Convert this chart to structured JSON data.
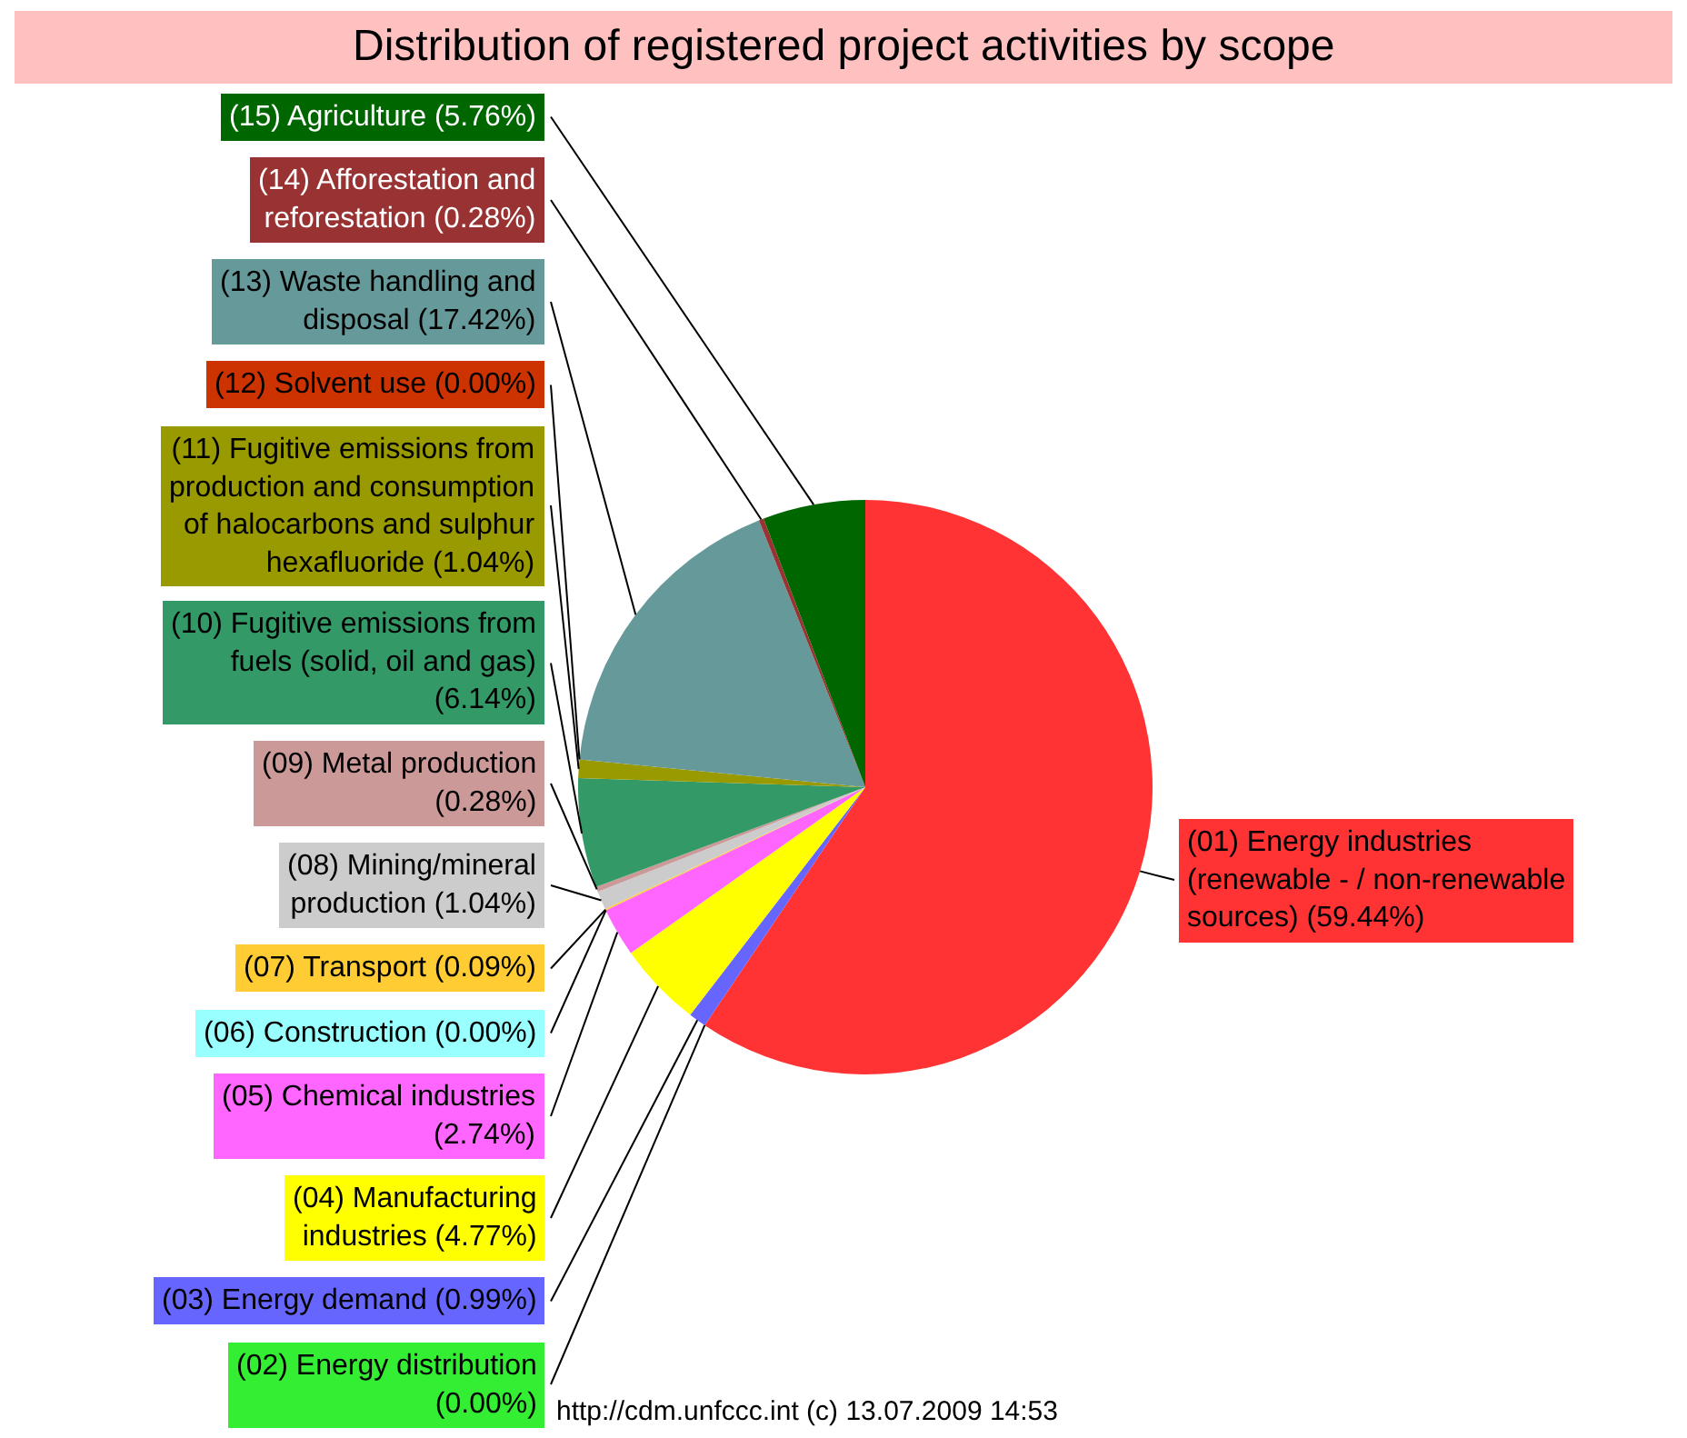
{
  "chart_data": {
    "type": "pie",
    "title": "Distribution of registered project activities by scope",
    "categories": [
      "(01) Energy industries (renewable - / non-renewable sources)",
      "(02) Energy distribution",
      "(03) Energy demand",
      "(04) Manufacturing industries",
      "(05) Chemical industries",
      "(06) Construction",
      "(07) Transport",
      "(08) Mining/mineral production",
      "(09) Metal production",
      "(10) Fugitive emissions from fuels (solid, oil and gas)",
      "(11) Fugitive emissions from production and consumption of halocarbons and sulphur hexafluoride",
      "(12) Solvent use",
      "(13) Waste handling and disposal",
      "(14) Afforestation and reforestation",
      "(15) Agriculture"
    ],
    "values": [
      59.44,
      0.0,
      0.99,
      4.77,
      2.74,
      0.0,
      0.09,
      1.04,
      0.28,
      6.14,
      1.04,
      0.0,
      17.42,
      0.28,
      5.76
    ],
    "value_labels": [
      "(59.44%)",
      "(0.00%)",
      "(0.99%)",
      "(4.77%)",
      "(2.74%)",
      "(0.00%)",
      "(0.09%)",
      "(1.04%)",
      "(0.28%)",
      "(6.14%)",
      "(1.04%)",
      "(0.00%)",
      "(17.42%)",
      "(0.28%)",
      "(5.76%)"
    ],
    "colors": [
      "#ff3333",
      "#33ee33",
      "#6666ff",
      "#ffff00",
      "#ff66ff",
      "#99ffff",
      "#ffcc33",
      "#cccccc",
      "#cc9999",
      "#339966",
      "#999900",
      "#cc3300",
      "#669999",
      "#993333",
      "#006600"
    ],
    "annotations": [
      "http://cdm.unfccc.int (c) 13.07.2009 14:53"
    ]
  }
}
